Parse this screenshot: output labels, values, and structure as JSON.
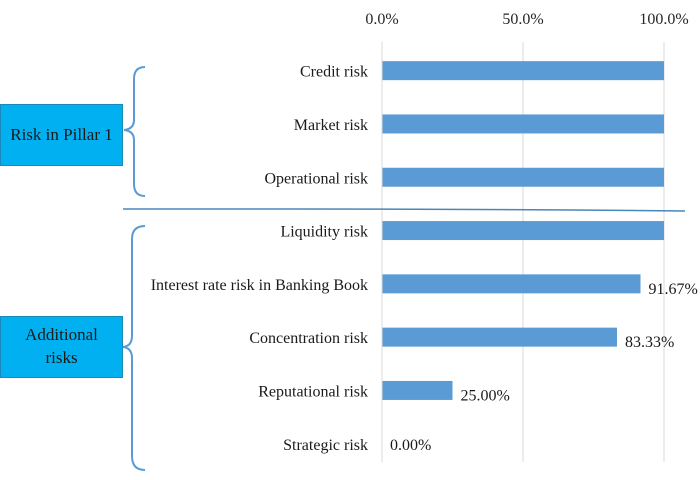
{
  "groups": {
    "pillar1": "Risk in Pillar 1",
    "additional": "Additional risks"
  },
  "colors": {
    "bar": "#5B9BD5",
    "group_box": "#00B0F0",
    "bracket": "#5B9BD5",
    "grid": "#D9D9D9"
  },
  "chart_data": {
    "type": "bar",
    "orientation": "horizontal",
    "categories": [
      "Credit risk",
      "Market risk",
      "Operational risk",
      "Liquidity risk",
      "Interest rate risk in Banking Book",
      "Concentration risk",
      "Reputational risk",
      "Strategic risk"
    ],
    "values": [
      100.0,
      100.0,
      100.0,
      100.0,
      91.67,
      83.33,
      25.0,
      0.0
    ],
    "data_labels": [
      "",
      "",
      "",
      "",
      "91.67%",
      "83.33%",
      "25.00%",
      "0.00%"
    ],
    "x_ticks": [
      "0.0%",
      "50.0%",
      "100.0%"
    ],
    "xlim": [
      0,
      100
    ],
    "x_axis_position": "top",
    "grid": true,
    "legend": "none"
  }
}
